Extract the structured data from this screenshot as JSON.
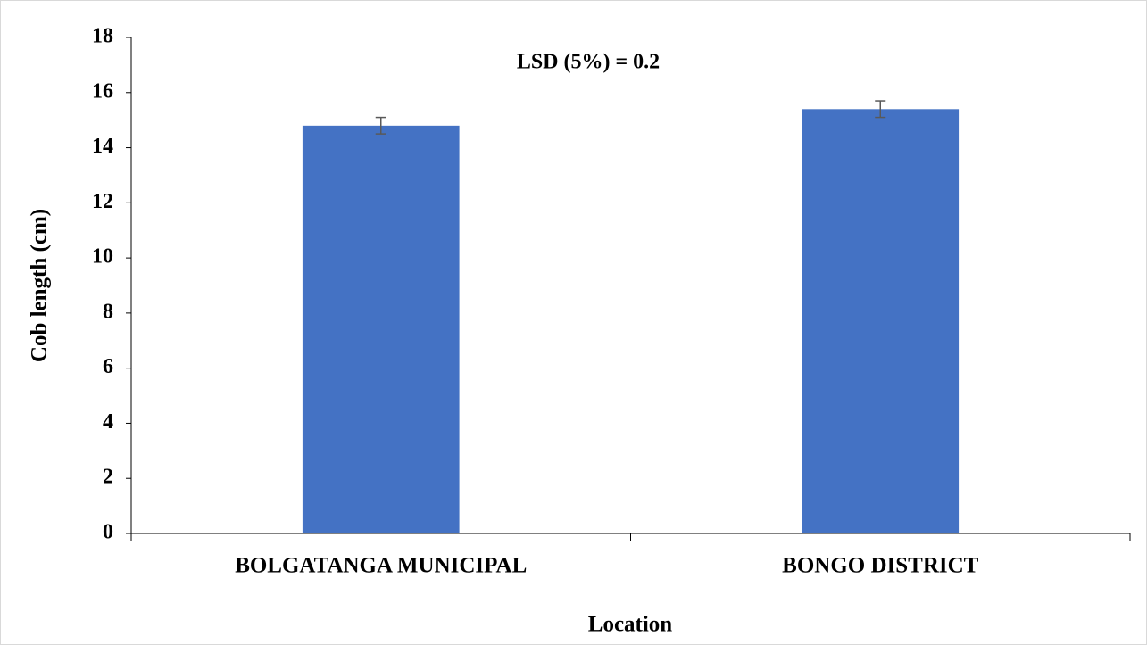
{
  "chart_data": {
    "type": "bar",
    "annotation": "LSD (5%) = 0.2",
    "x_label": "Location",
    "y_label": "Cob length (cm)",
    "categories": [
      "BOLGATANGA MUNICIPAL",
      "BONGO DISTRICT"
    ],
    "values": [
      14.8,
      15.4
    ],
    "errors": [
      0.3,
      0.3
    ],
    "color": "#4472c4",
    "ylim": [
      0,
      18
    ],
    "yticks": [
      0,
      2,
      4,
      6,
      8,
      10,
      12,
      14,
      16,
      18
    ],
    "grid": false
  }
}
